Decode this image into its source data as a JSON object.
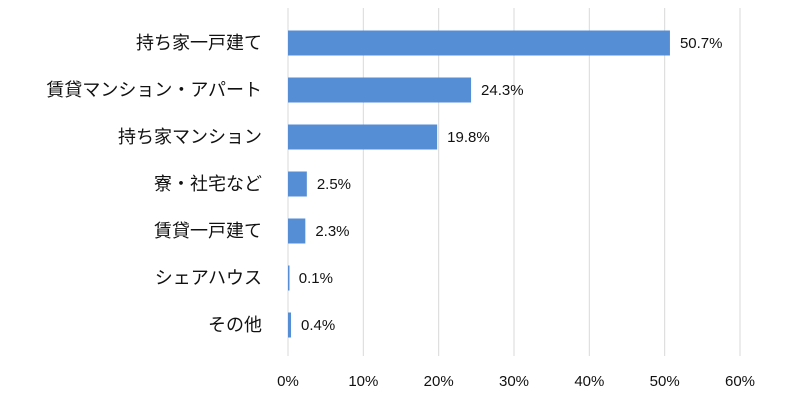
{
  "chart_data": {
    "type": "bar",
    "orientation": "horizontal",
    "categories": [
      "持ち家一戸建て",
      "賃貸マンション・アパート",
      "持ち家マンション",
      "寮・社宅など",
      "賃貸一戸建て",
      "シェアハウス",
      "その他"
    ],
    "values": [
      50.7,
      24.3,
      19.8,
      2.5,
      2.3,
      0.1,
      0.4
    ],
    "value_labels": [
      "50.7%",
      "24.3%",
      "19.8%",
      "2.5%",
      "2.3%",
      "0.1%",
      "0.4%"
    ],
    "xlim": [
      0,
      60
    ],
    "x_ticks": [
      0,
      10,
      20,
      30,
      40,
      50,
      60
    ],
    "x_tick_labels": [
      "0%",
      "10%",
      "20%",
      "30%",
      "40%",
      "50%",
      "60%"
    ],
    "title": "",
    "xlabel": "",
    "ylabel": "",
    "grid": "vertical",
    "legend": "none",
    "colors": {
      "bar": "#558ed5",
      "grid": "#d9d9d9",
      "text": "#111111"
    }
  }
}
